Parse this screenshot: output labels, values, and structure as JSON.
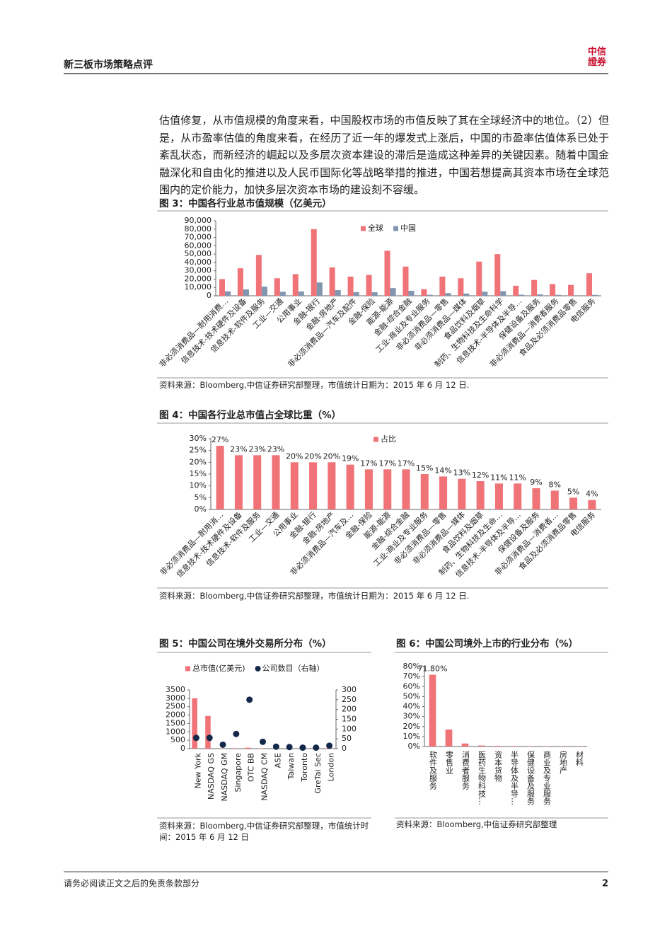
{
  "header": {
    "title": "新三板市场策略点评",
    "logo": "中信證券"
  },
  "body": {
    "paragraph": "估值修复，从市值规模的角度来看，中国股权市场的市值反映了其在全球经济中的地位。（2）但是，从市盈率估值的角度来看，在经历了近一年的爆发式上涨后，中国的市盈率估值体系已处于紊乱状态，而新经济的崛起以及多层次资本建设的滞后是造成这种差异的关键因素。随着中国金融深化和自由化的推进以及人民币国际化等战略举措的推进，中国若想提高其资本市场在全球范围内的定价能力，加快多层次资本市场的建设刻不容缓。"
  },
  "chart_data": [
    {
      "type": "bar",
      "title": "图 3：中国各行业总市值规模（亿美元）",
      "categories": [
        "非必须消费品—耐用消费…",
        "信息技术-技术硬件及设备",
        "信息技术-软件及服务",
        "工业—交通",
        "公用事业",
        "金融-银行",
        "金融-房地产",
        "非必须消费品—汽车及配件",
        "金融-保险",
        "能源-能源",
        "金融-综合金融",
        "工业-商业及专业服务",
        "非必须消费品—零售",
        "非必须消费品—媒体",
        "食品饮料及烟草",
        "制药、生物科技及生命科学",
        "信息技术-半导体及半导…",
        "保健设备及服务",
        "非必须消费品—消费者服务",
        "食品及必须消费品零售",
        "电信服务"
      ],
      "series": [
        {
          "name": "全球",
          "color": "#f07378",
          "values": [
            20000,
            33000,
            49000,
            21000,
            26000,
            80000,
            34000,
            23000,
            25000,
            54000,
            35000,
            8000,
            23000,
            21000,
            41000,
            50000,
            12000,
            19000,
            14000,
            13000,
            27000
          ]
        },
        {
          "name": "中国",
          "color": "#8296b0",
          "values": [
            5400,
            7600,
            11000,
            4800,
            5200,
            16000,
            6800,
            4400,
            4300,
            9200,
            6000,
            1200,
            3200,
            2700,
            4900,
            5500,
            1300,
            1700,
            1100,
            650,
            1100
          ]
        }
      ],
      "ylim": [
        0,
        90000
      ],
      "yticks": [
        0,
        {
          "value": 10000,
          "label": "10,000"
        },
        {
          "value": 20000,
          "label": "20,000"
        },
        {
          "value": 30000,
          "label": "30,000"
        },
        {
          "value": 40000,
          "label": "40,000"
        },
        {
          "value": 50000,
          "label": "50,000"
        },
        {
          "value": 60000,
          "label": "60,000"
        },
        {
          "value": 70000,
          "label": "70,000"
        },
        {
          "value": 80000,
          "label": "80,000"
        },
        {
          "value": 90000,
          "label": "90,000"
        }
      ],
      "legend": "top",
      "source": "资料来源：Bloomberg,中信证券研究部整理，市值统计日期为：2015 年 6 月 12 日."
    },
    {
      "type": "bar",
      "title": "图 4：中国各行业总市值占全球比重（%）",
      "categories": [
        "非必须消费品—耐用消…",
        "信息技术-技术硬件及设备",
        "信息技术-软件及服务",
        "工业—交通",
        "公用事业",
        "金融-银行",
        "金融-房地产",
        "非必须消费品—汽车及…",
        "金融-保险",
        "能源-能源",
        "金融-综合金融",
        "工业-商业及专业服务",
        "非必须消费品—零售",
        "非必须消费品—媒体",
        "食品饮料及烟草",
        "制药、生物科技及生命…",
        "信息技术-半导体及半导…",
        "保健设备及服务",
        "非必须消费品—消费者…",
        "食品及必须消费品零售",
        "电信服务"
      ],
      "series": [
        {
          "name": "占比",
          "color": "#f07378",
          "values": [
            27,
            23,
            23,
            23,
            20,
            20,
            20,
            19,
            17,
            17,
            17,
            15,
            14,
            13,
            12,
            11,
            11,
            9,
            8,
            5,
            4
          ],
          "value_labels": [
            "27%",
            "23%",
            "23%",
            "23%",
            "20%",
            "20%",
            "20%",
            "19%",
            "17%",
            "17%",
            "17%",
            "15%",
            "14%",
            "13%",
            "12%",
            "11%",
            "11%",
            "9%",
            "8%",
            "5%",
            "4%"
          ]
        }
      ],
      "ylim": [
        0,
        30
      ],
      "yticks": [
        {
          "value": 0,
          "label": "0%"
        },
        {
          "value": 5,
          "label": "5%"
        },
        {
          "value": 10,
          "label": "10%"
        },
        {
          "value": 15,
          "label": "15%"
        },
        {
          "value": 20,
          "label": "20%"
        },
        {
          "value": 25,
          "label": "25%"
        },
        {
          "value": 30,
          "label": "30%"
        }
      ],
      "legend": "top",
      "source": "资料来源：Bloomberg,中信证券研究部整理，市值统计日期为：2015 年 6 月 12 日."
    },
    {
      "type": "combo",
      "title": "图 5：中国公司在境外交易所分布（%）",
      "categories": [
        "New York",
        "NASDAQ GS",
        "NASDAQ GM",
        "Singapore",
        "OTC BB",
        "NASDAQ CM",
        "ASE",
        "Taiwan",
        "Toronto",
        "GreTai Sec",
        "London"
      ],
      "series": [
        {
          "name": "总市值(亿美元)",
          "type": "bar",
          "color": "#f07378",
          "values": [
            3000,
            1950,
            20,
            30,
            60,
            20,
            10,
            5,
            5,
            5,
            30
          ]
        },
        {
          "name": "公司数目（右轴）",
          "type": "scatter",
          "axis": "y2",
          "color": "#14284a",
          "values": [
            55,
            55,
            20,
            75,
            250,
            35,
            10,
            8,
            5,
            5,
            15
          ]
        }
      ],
      "ylim": [
        0,
        3500
      ],
      "yticks": [
        0,
        500,
        1000,
        1500,
        2000,
        2500,
        3000,
        3500
      ],
      "y2lim": [
        0,
        300
      ],
      "y2ticks": [
        0,
        50,
        100,
        150,
        200,
        250,
        300
      ],
      "legend": "top",
      "source": "资料来源：Bloomberg,中信证券研究部整理，市值统计时间：2015 年 6 月 12 日"
    },
    {
      "type": "bar",
      "title": "图 6：中国公司境外上市的行业分布（%）",
      "categories": [
        "软件及服务",
        "零售业",
        "消费者服务",
        "医药生物科技…",
        "资本货物",
        "半导体及半导…",
        "保健设备及服务",
        "商业及专业服务",
        "房地产",
        "材料"
      ],
      "color": "#f07378",
      "values": [
        71.8,
        17,
        3,
        1,
        0.6,
        0.5,
        0.4,
        0.3,
        0.2,
        0.2
      ],
      "value_labels": [
        "71.80%",
        null,
        null,
        null,
        null,
        null,
        null,
        null,
        null,
        null
      ],
      "ylim": [
        0,
        80
      ],
      "yticks": [
        {
          "value": 0,
          "label": "0%"
        },
        {
          "value": 10,
          "label": "10%"
        },
        {
          "value": 20,
          "label": "20%"
        },
        {
          "value": 30,
          "label": "30%"
        },
        {
          "value": 40,
          "label": "40%"
        },
        {
          "value": 50,
          "label": "50%"
        },
        {
          "value": 60,
          "label": "60%"
        },
        {
          "value": 70,
          "label": "70%"
        },
        {
          "value": 80,
          "label": "80%"
        }
      ],
      "source": "资料来源：Bloomberg,中信证券研究部整理"
    }
  ],
  "footer": {
    "disclaimer": "请务必阅读正文之后的免责条款部分",
    "page": "2"
  }
}
